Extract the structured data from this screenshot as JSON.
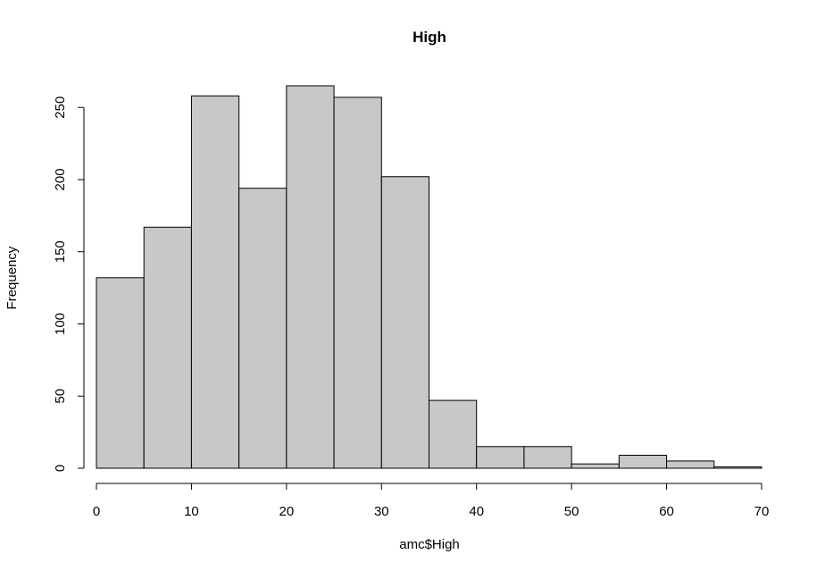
{
  "chart_data": {
    "type": "bar",
    "title": "High",
    "xlabel": "amc$High",
    "ylabel": "Frequency",
    "bins": [
      [
        0,
        5
      ],
      [
        5,
        10
      ],
      [
        10,
        15
      ],
      [
        15,
        20
      ],
      [
        20,
        25
      ],
      [
        25,
        30
      ],
      [
        30,
        35
      ],
      [
        35,
        40
      ],
      [
        40,
        45
      ],
      [
        45,
        50
      ],
      [
        50,
        55
      ],
      [
        55,
        60
      ],
      [
        60,
        65
      ],
      [
        65,
        70
      ]
    ],
    "values": [
      132,
      167,
      258,
      194,
      265,
      257,
      202,
      47,
      15,
      15,
      3,
      9,
      5,
      1
    ],
    "xlim": [
      0,
      70
    ],
    "ylim": [
      0,
      265
    ],
    "x_ticks": [
      0,
      10,
      20,
      30,
      40,
      50,
      60,
      70
    ],
    "y_ticks": [
      0,
      50,
      100,
      150,
      200,
      250
    ],
    "grid": false,
    "bar_color": "#c8c8c8",
    "edge_color": "#000000"
  }
}
